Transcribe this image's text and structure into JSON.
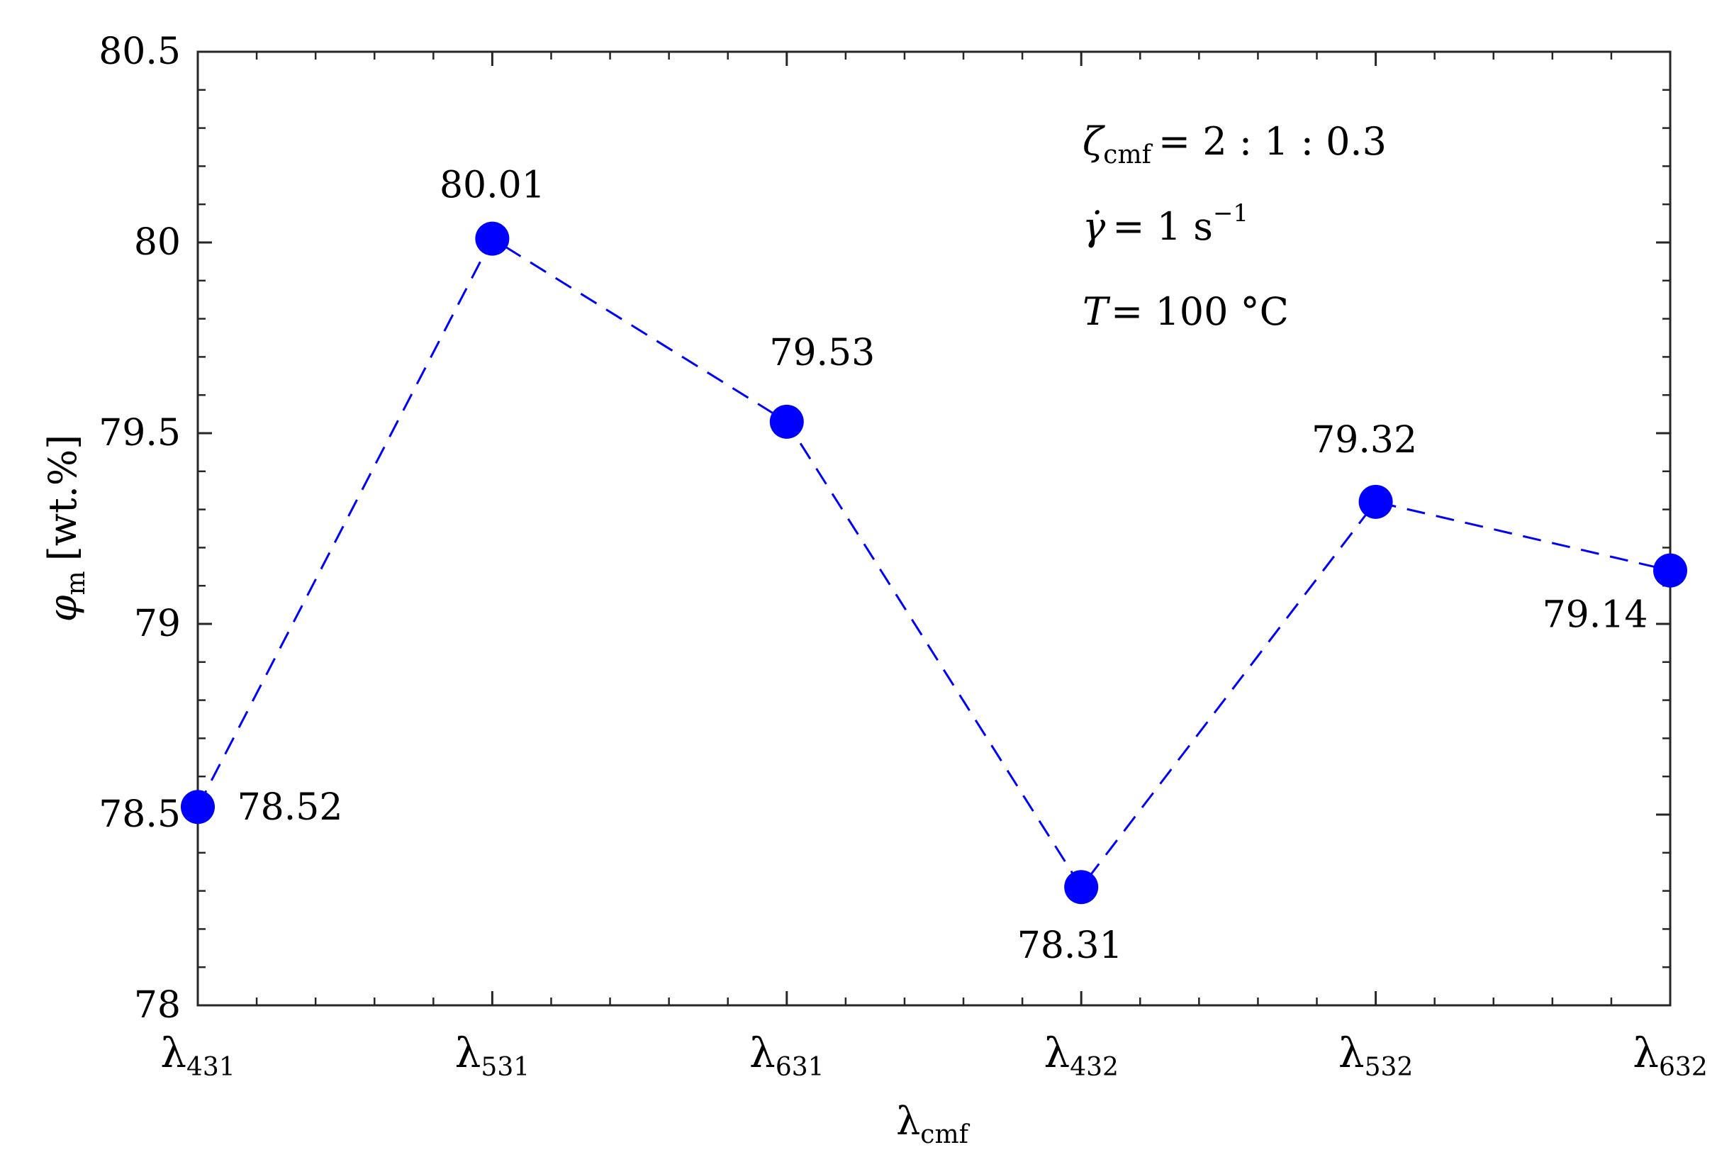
{
  "chart_data": {
    "type": "line",
    "categories": [
      "λ431",
      "λ531",
      "λ631",
      "λ432",
      "λ532",
      "λ632"
    ],
    "category_labels": [
      {
        "base": "λ",
        "sub": "431"
      },
      {
        "base": "λ",
        "sub": "531"
      },
      {
        "base": "λ",
        "sub": "631"
      },
      {
        "base": "λ",
        "sub": "432"
      },
      {
        "base": "λ",
        "sub": "532"
      },
      {
        "base": "λ",
        "sub": "632"
      }
    ],
    "series": [
      {
        "values": [
          78.52,
          80.01,
          79.53,
          78.31,
          79.32,
          79.14
        ],
        "data_labels": [
          "78.52",
          "80.01",
          "79.53",
          "78.31",
          "79.32",
          "79.14"
        ],
        "color": "#0000ff",
        "line_style": "dashed",
        "marker": "circle"
      }
    ],
    "ylim": [
      78,
      80.5
    ],
    "yticks": [
      78,
      78.5,
      79,
      79.5,
      80,
      80.5
    ],
    "ytick_labels": [
      "78",
      "78.5",
      "79",
      "79.5",
      "80",
      "80.5"
    ],
    "xlabel": {
      "base": "λ",
      "sub": "cmf"
    },
    "ylabel": {
      "base": "φ",
      "sub": "m",
      "rest": "[wt.%]"
    },
    "annotations": [
      {
        "base": "ζ",
        "sub": "cmf",
        "rest": "=  2 : 1 : 0.3"
      },
      {
        "base": "γ̇",
        "rest": "= 1 s",
        "sup": "−1"
      },
      {
        "base": "T",
        "rest": "= 100 °C"
      }
    ],
    "grid": false,
    "box": true
  }
}
